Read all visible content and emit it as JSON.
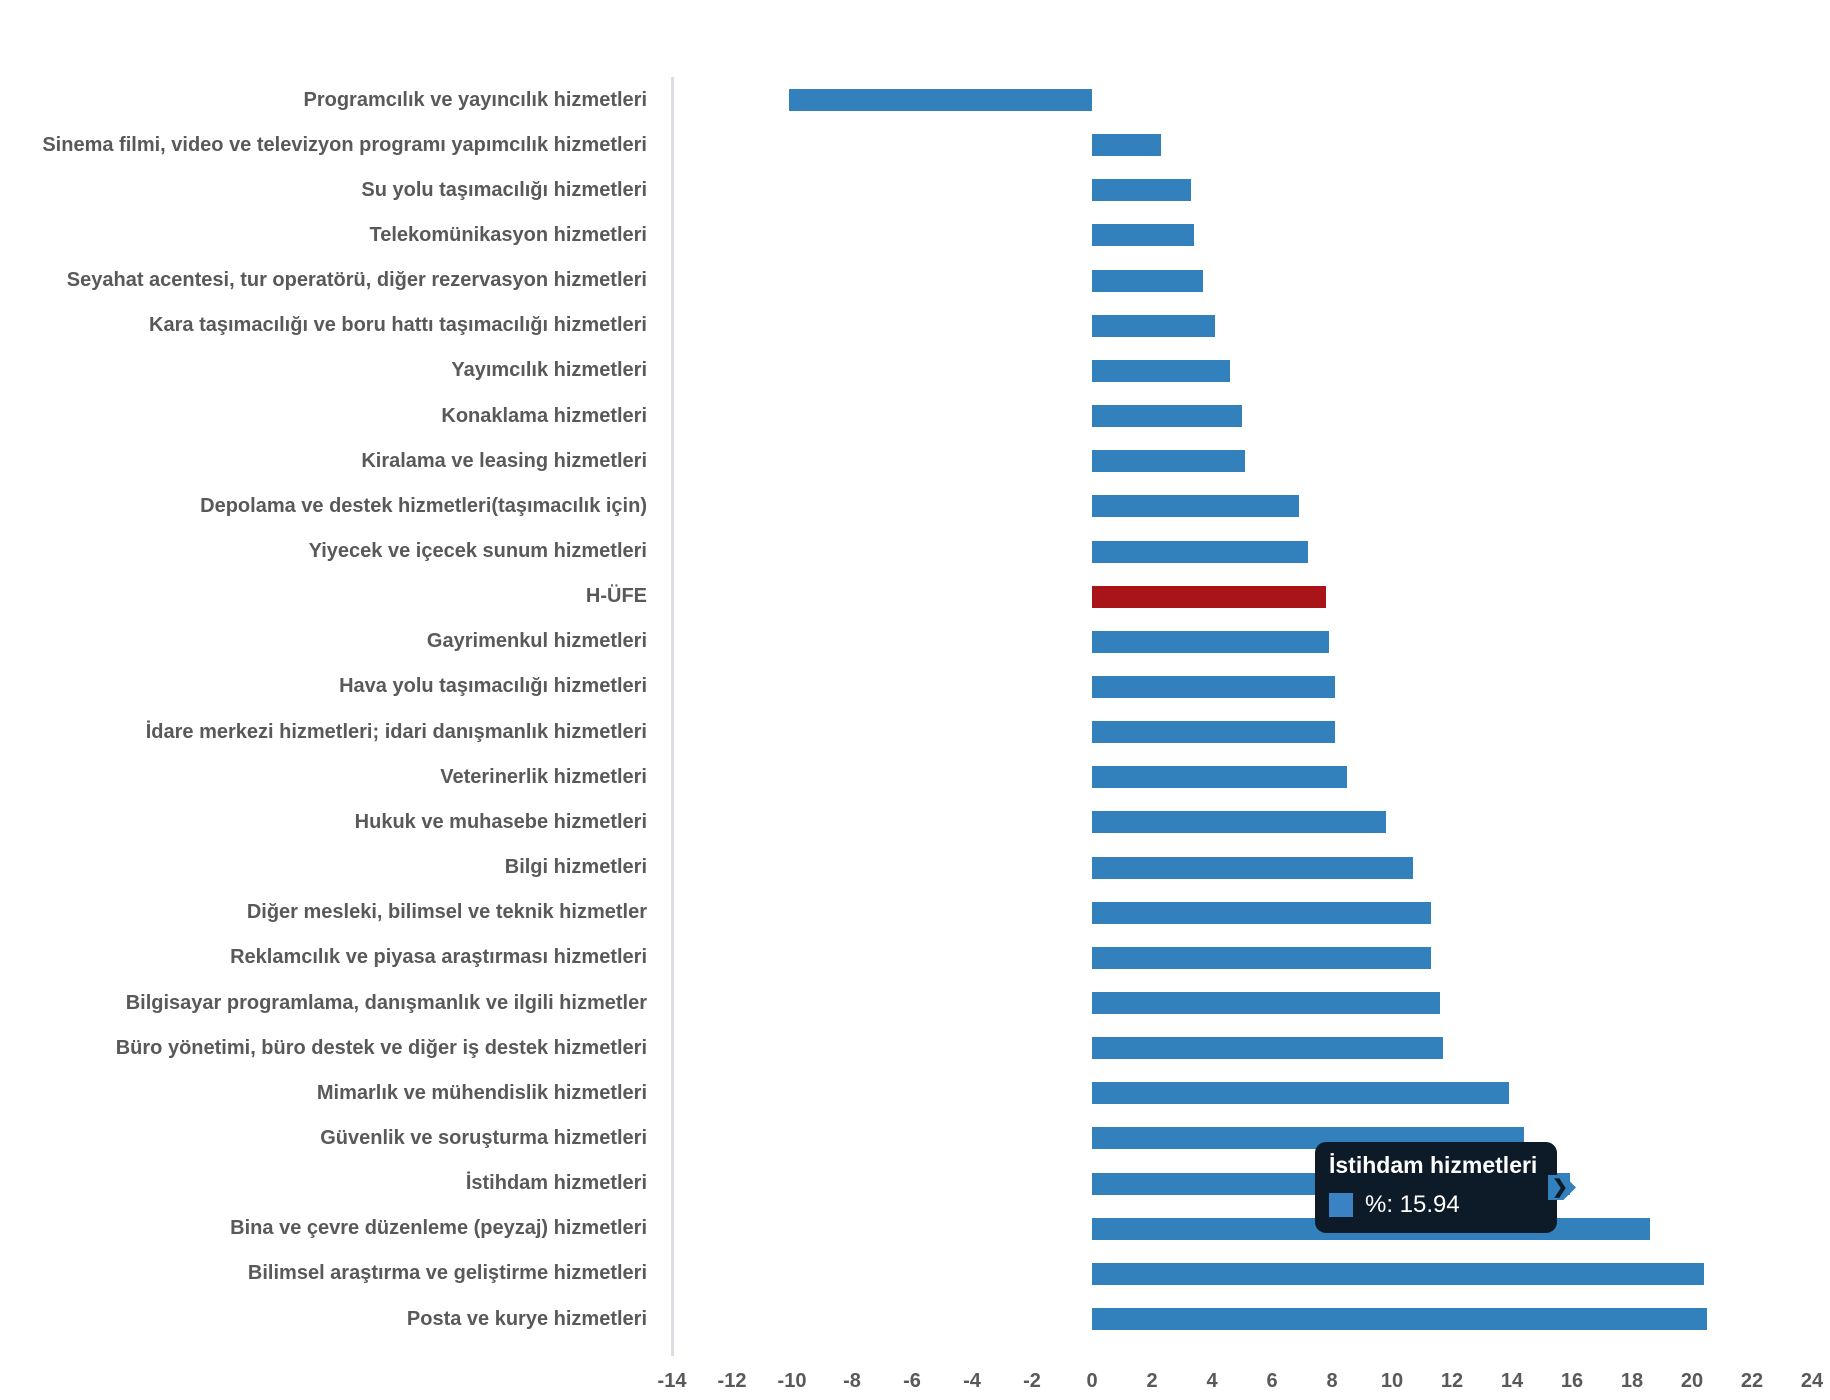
{
  "chart_data": {
    "type": "bar",
    "orientation": "horizontal",
    "title": "",
    "xlabel": "",
    "ylabel": "",
    "xlim": [
      -14,
      24
    ],
    "x_ticks": [
      -14,
      -12,
      -10,
      -8,
      -6,
      -4,
      -2,
      0,
      2,
      4,
      6,
      8,
      10,
      12,
      14,
      16,
      18,
      20,
      22,
      24
    ],
    "grid": false,
    "bar_color": "#3280BC",
    "highlight_color": "#A91419",
    "highlight_category": "H-ÜFE",
    "categories": [
      "Programcılık ve yayıncılık hizmetleri",
      "Sinema filmi, video ve televizyon programı yapımcılık hizmetleri",
      "Su yolu taşımacılığı hizmetleri",
      "Telekomünikasyon hizmetleri",
      "Seyahat acentesi, tur operatörü, diğer rezervasyon hizmetleri",
      "Kara taşımacılığı ve boru hattı taşımacılığı hizmetleri",
      "Yayımcılık hizmetleri",
      "Konaklama hizmetleri",
      "Kiralama ve leasing hizmetleri",
      "Depolama ve destek hizmetleri(taşımacılık için)",
      "Yiyecek ve içecek sunum hizmetleri",
      "H-ÜFE",
      "Gayrimenkul hizmetleri",
      "Hava yolu taşımacılığı hizmetleri",
      "İdare merkezi hizmetleri; idari danışmanlık hizmetleri",
      "Veterinerlik hizmetleri",
      "Hukuk ve muhasebe hizmetleri",
      "Bilgi hizmetleri",
      "Diğer mesleki, bilimsel ve teknik hizmetler",
      "Reklamcılık ve piyasa araştırması hizmetleri",
      "Bilgisayar programlama, danışmanlık ve ilgili hizmetler",
      "Büro yönetimi, büro destek ve diğer iş destek hizmetleri",
      "Mimarlık ve mühendislik hizmetleri",
      "Güvenlik ve soruşturma hizmetleri",
      "İstihdam hizmetleri",
      "Bina ve çevre düzenleme (peyzaj) hizmetleri",
      "Bilimsel araştırma ve geliştirme hizmetleri",
      "Posta ve kurye hizmetleri"
    ],
    "values": [
      -10.1,
      2.3,
      3.3,
      3.4,
      3.7,
      4.1,
      4.6,
      5.0,
      5.1,
      6.9,
      7.2,
      7.8,
      7.9,
      8.1,
      8.1,
      8.5,
      9.8,
      10.7,
      11.3,
      11.3,
      11.6,
      11.7,
      13.9,
      14.4,
      15.94,
      18.6,
      20.4,
      20.5
    ]
  },
  "tooltip": {
    "title": "İstihdam hizmetleri",
    "value_label": "%: 15.94",
    "bg_color": "#0D1B28",
    "swatch_color": "#3A82C4",
    "text_color": "#ffffff"
  }
}
